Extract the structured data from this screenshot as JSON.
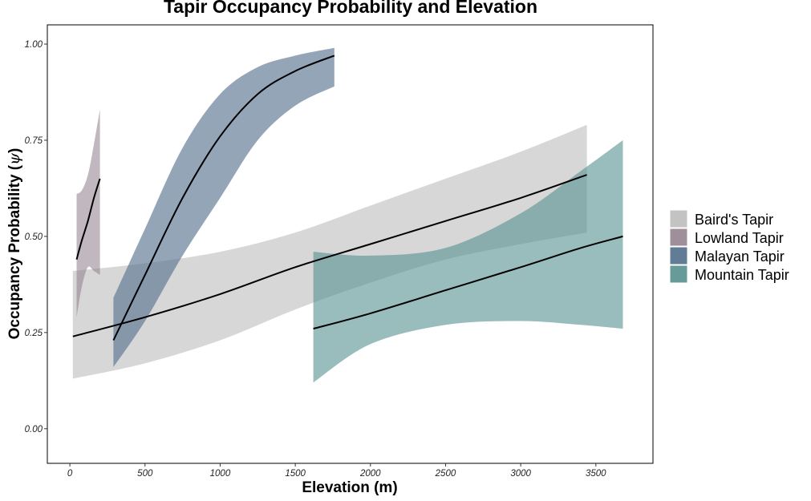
{
  "chart_data": {
    "type": "line",
    "title": "Tapir Occupancy Probability and Elevation",
    "xlabel": "Elevation (m)",
    "ylabel_main": "Occupancy Probability (",
    "ylabel_symbol": "ψ",
    "ylabel_close": ")",
    "xlim": [
      -150,
      3880
    ],
    "ylim": [
      -0.09,
      1.05
    ],
    "x_ticks": [
      0,
      500,
      1000,
      1500,
      2000,
      2500,
      3000,
      3500
    ],
    "x_tick_labels": [
      "0",
      "500",
      "1000",
      "1500",
      "2000",
      "2500",
      "3000",
      "3500"
    ],
    "y_ticks": [
      0,
      0.25,
      0.5,
      0.75,
      1.0
    ],
    "y_tick_labels": [
      "0.00",
      "0.25",
      "0.50",
      "0.75",
      "1.00"
    ],
    "grid": false,
    "legend_position": "right",
    "series": [
      {
        "name": "Baird's Tapir",
        "color": "#bdbdbd",
        "ribbon_opacity": 0.6,
        "x": [
          20,
          500,
          1000,
          1500,
          2000,
          2500,
          3000,
          3440
        ],
        "fit": [
          0.24,
          0.29,
          0.35,
          0.42,
          0.48,
          0.54,
          0.6,
          0.66
        ],
        "lower": [
          0.13,
          0.17,
          0.23,
          0.31,
          0.38,
          0.44,
          0.48,
          0.51
        ],
        "upper": [
          0.41,
          0.43,
          0.46,
          0.51,
          0.58,
          0.65,
          0.72,
          0.79
        ]
      },
      {
        "name": "Lowland Tapir",
        "color": "#8e7b8a",
        "ribbon_opacity": 0.55,
        "x": [
          45,
          80,
          120,
          160,
          200
        ],
        "fit": [
          0.44,
          0.49,
          0.54,
          0.6,
          0.65
        ],
        "lower": [
          0.29,
          0.37,
          0.42,
          0.41,
          0.4
        ],
        "upper": [
          0.61,
          0.62,
          0.66,
          0.74,
          0.83
        ]
      },
      {
        "name": "Malayan Tapir",
        "color": "#5a7590",
        "ribbon_opacity": 0.65,
        "x": [
          290,
          500,
          750,
          1000,
          1250,
          1500,
          1760
        ],
        "fit": [
          0.23,
          0.4,
          0.6,
          0.76,
          0.87,
          0.93,
          0.97
        ],
        "lower": [
          0.16,
          0.28,
          0.45,
          0.6,
          0.75,
          0.84,
          0.89
        ],
        "upper": [
          0.34,
          0.52,
          0.73,
          0.87,
          0.94,
          0.97,
          0.99
        ]
      },
      {
        "name": "Mountain Tapir",
        "color": "#55908f",
        "ribbon_opacity": 0.6,
        "x": [
          1620,
          2000,
          2500,
          3000,
          3400,
          3680
        ],
        "fit": [
          0.26,
          0.3,
          0.36,
          0.42,
          0.47,
          0.5
        ],
        "lower": [
          0.12,
          0.22,
          0.27,
          0.28,
          0.27,
          0.26
        ],
        "upper": [
          0.46,
          0.45,
          0.47,
          0.56,
          0.67,
          0.75
        ]
      }
    ]
  }
}
